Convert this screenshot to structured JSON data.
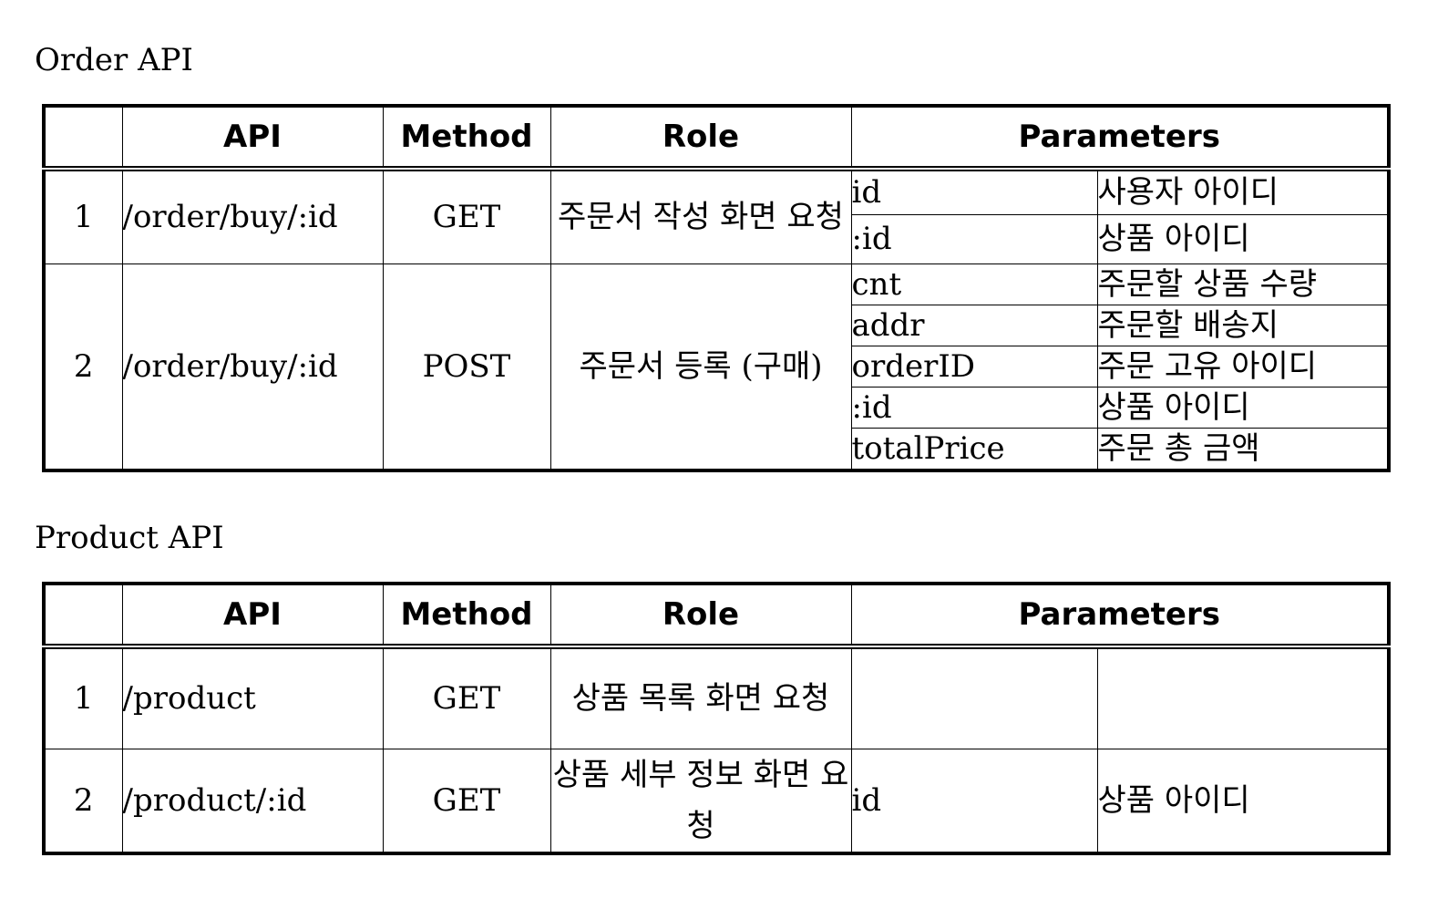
{
  "order": {
    "title": "Order API",
    "headers": {
      "no": "",
      "api": "API",
      "method": "Method",
      "role": "Role",
      "parameters": "Parameters"
    },
    "rows": [
      {
        "no": "1",
        "api": "/order/buy/:id",
        "method": "GET",
        "role": "주문서 작성 화면 요청",
        "params": [
          {
            "name": "id",
            "desc": "사용자 아이디"
          },
          {
            "name": ":id",
            "desc": "상품 아이디"
          }
        ]
      },
      {
        "no": "2",
        "api": "/order/buy/:id",
        "method": "POST",
        "role": "주문서 등록 (구매)",
        "params": [
          {
            "name": "cnt",
            "desc": "주문할 상품 수량"
          },
          {
            "name": "addr",
            "desc": "주문할 배송지"
          },
          {
            "name": "orderID",
            "desc": "주문 고유 아이디"
          },
          {
            "name": ":id",
            "desc": "상품 아이디"
          },
          {
            "name": "totalPrice",
            "desc": "주문 총 금액"
          }
        ]
      }
    ]
  },
  "product": {
    "title": "Product API",
    "headers": {
      "no": "",
      "api": "API",
      "method": "Method",
      "role": "Role",
      "parameters": "Parameters"
    },
    "rows": [
      {
        "no": "1",
        "api": "/product",
        "method": "GET",
        "role": "상품 목록 화면 요청",
        "params": [
          {
            "name": "",
            "desc": ""
          }
        ]
      },
      {
        "no": "2",
        "api": "/product/:id",
        "method": "GET",
        "role": "상품 세부 정보 화면 요청",
        "params": [
          {
            "name": "id",
            "desc": "상품 아이디"
          }
        ]
      }
    ]
  }
}
